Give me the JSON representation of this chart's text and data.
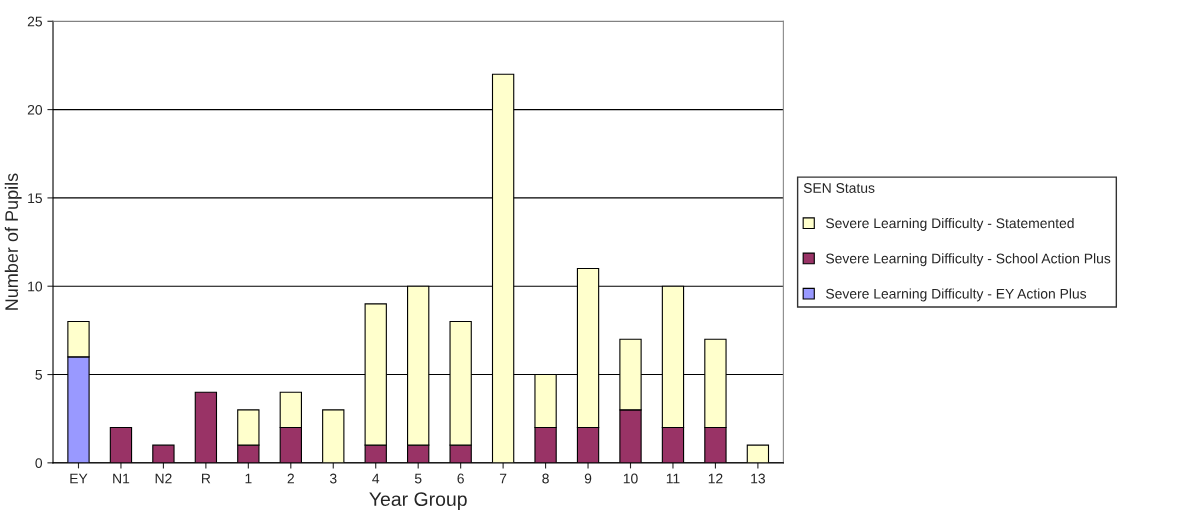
{
  "chart_data": {
    "type": "bar",
    "stacked": true,
    "xlabel": "Year Group",
    "ylabel": "Number of Pupils",
    "legend_title": "SEN Status",
    "categories": [
      "EY",
      "N1",
      "N2",
      "R",
      "1",
      "2",
      "3",
      "4",
      "5",
      "6",
      "7",
      "8",
      "9",
      "10",
      "11",
      "12",
      "13"
    ],
    "series": [
      {
        "name": "Severe Learning Difficulty - EY Action Plus",
        "color": "#9999ff",
        "values": [
          6,
          null,
          null,
          null,
          null,
          null,
          null,
          null,
          null,
          null,
          null,
          null,
          null,
          null,
          null,
          null,
          null
        ]
      },
      {
        "name": "Severe Learning Difficulty - School Action Plus",
        "color": "#993366",
        "values": [
          null,
          2,
          1,
          4,
          1,
          2,
          null,
          1,
          1,
          1,
          null,
          2,
          2,
          3,
          2,
          2,
          null
        ]
      },
      {
        "name": "Severe Learning Difficulty - Statemented",
        "color": "#ffffcc",
        "values": [
          2,
          null,
          null,
          null,
          2,
          2,
          3,
          8,
          9,
          7,
          22,
          3,
          9,
          4,
          8,
          5,
          1
        ]
      }
    ],
    "ylim": [
      0,
      25
    ],
    "yticks": [
      0,
      5,
      10,
      15,
      20,
      25
    ],
    "grid": "y",
    "legend": "right"
  }
}
